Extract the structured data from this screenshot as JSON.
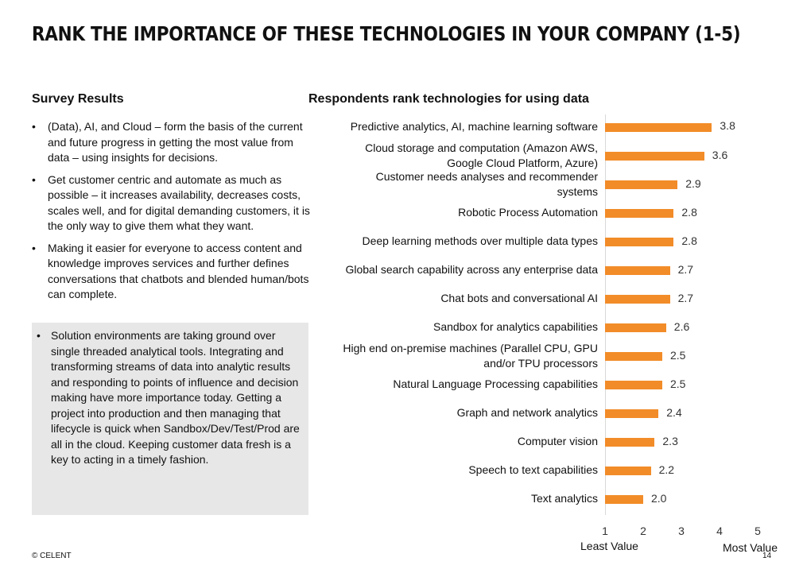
{
  "header": {
    "title": "RANK THE IMPORTANCE OF THESE TECHNOLOGIES IN YOUR COMPANY (1-5)"
  },
  "survey": {
    "heading": "Survey Results",
    "bullets": [
      "(Data), AI, and Cloud – form the basis of the current and future progress in getting the most value from data – using insights for decisions.",
      "Get customer centric and automate as much as possible – it increases availability, decreases costs, scales well, and for digital demanding customers, it is the only way to give them what they want.",
      "Making it easier for everyone to access content and knowledge improves services and further defines conversations that chatbots and blended human/bots can complete."
    ],
    "callout": "Solution environments are taking ground over single threaded analytical tools.  Integrating and transforming streams of data into analytic results and responding to points of influence and decision making have more importance today.  Getting a project into production and then managing that lifecycle is quick when Sandbox/Dev/Test/Prod are all in the cloud.  Keeping customer data fresh is a key to acting in a timely fashion."
  },
  "chart_data": {
    "type": "bar",
    "orientation": "horizontal",
    "title": "Respondents rank technologies for using data",
    "categories": [
      "Predictive analytics, AI, machine learning software",
      "Cloud storage and computation (Amazon AWS,\nGoogle Cloud Platform, Azure)",
      "Customer needs analyses and recommender\nsystems",
      "Robotic Process Automation",
      "Deep learning methods over multiple data types",
      "Global search capability across any enterprise data",
      "Chat bots and conversational AI",
      "Sandbox for analytics capabilities",
      "High end on-premise machines (Parallel CPU, GPU\nand/or TPU processors",
      "Natural Language Processing capabilities",
      "Graph and network analytics",
      "Computer vision",
      "Speech to text capabilities",
      "Text analytics"
    ],
    "values": [
      3.8,
      3.6,
      2.9,
      2.8,
      2.8,
      2.7,
      2.7,
      2.6,
      2.5,
      2.5,
      2.4,
      2.3,
      2.2,
      2.0
    ],
    "value_labels": [
      "3.8",
      "3.6",
      "2.9",
      "2.8",
      "2.8",
      "2.7",
      "2.7",
      "2.6",
      "2.5",
      "2.5",
      "2.4",
      "2.3",
      "2.2",
      "2.0"
    ],
    "xlim": [
      1,
      5
    ],
    "xticks": [
      "1",
      "2",
      "3",
      "4",
      "5"
    ],
    "xlabel_left": "Least Value",
    "xlabel_right": "Most Value",
    "bar_color": "#f28c28"
  },
  "footer": {
    "copyright": "© CELENT",
    "page": "14"
  }
}
